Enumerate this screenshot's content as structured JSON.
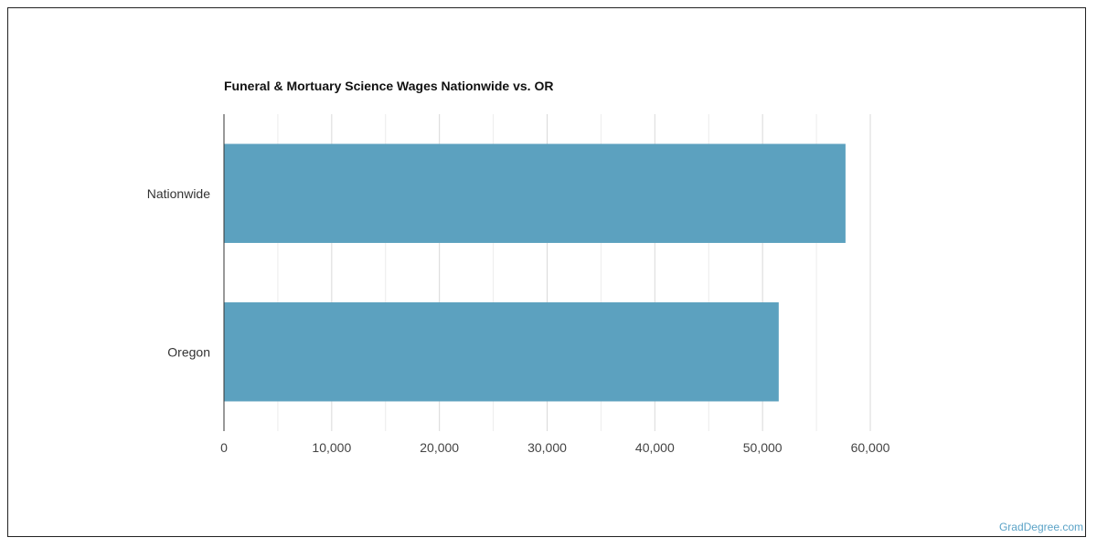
{
  "chart_data": {
    "type": "bar",
    "orientation": "horizontal",
    "title": "Funeral & Mortuary Science Wages Nationwide vs. OR",
    "categories": [
      "Nationwide",
      "Oregon"
    ],
    "values": [
      57700,
      51500
    ],
    "xlim": [
      0,
      60000
    ],
    "xticks": [
      0,
      10000,
      20000,
      30000,
      40000,
      50000,
      60000
    ],
    "xtick_labels": [
      "0",
      "10,000",
      "20,000",
      "30,000",
      "40,000",
      "50,000",
      "60,000"
    ],
    "grid": true,
    "bar_color": "#5ca1bf",
    "grid_color": "#d9d9d9",
    "minor_grid_color": "#ececec"
  },
  "watermark": "GradDegree.com"
}
